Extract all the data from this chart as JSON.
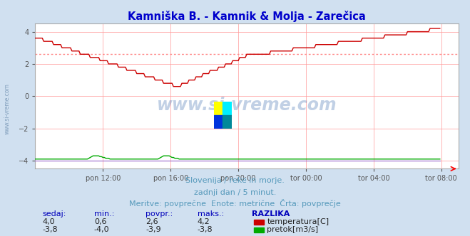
{
  "title": "Kamniška B. - Kamnik & Molja - Zarečica",
  "title_color": "#0000cc",
  "bg_color": "#d0e0f0",
  "plot_bg_color": "#ffffff",
  "grid_color": "#ff9999",
  "xlabel_ticks": [
    "pon 12:00",
    "pon 16:00",
    "pon 20:00",
    "tor 00:00",
    "tor 04:00",
    "tor 08:00"
  ],
  "xtick_positions": [
    48,
    96,
    144,
    192,
    240,
    288
  ],
  "ylim": [
    -4.5,
    4.5
  ],
  "xlim": [
    0,
    300
  ],
  "yticks": [
    -4,
    -2,
    0,
    2,
    4
  ],
  "avg_line_temp": 2.6,
  "avg_line_color": "#ff8888",
  "temp_color": "#cc0000",
  "flow_color": "#00aa00",
  "height_color": "#9966cc",
  "footer_line1": "Slovenija / reke in morje.",
  "footer_line2": "zadnji dan / 5 minut.",
  "footer_line3": "Meritve: povprečne  Enote: metrične  Črta: povprečje",
  "footer_color": "#5599bb",
  "table_headers": [
    "sedaj:",
    "min.:",
    "povpr.:",
    "maks.:",
    "RAZLIKA"
  ],
  "table_row1": [
    "4,0",
    "0,6",
    "2,6",
    "4,2"
  ],
  "table_row2": [
    "-3,8",
    "-4,0",
    "-3,9",
    "-3,8"
  ],
  "label_temp": "temperatura[C]",
  "label_flow": "pretok[m3/s]",
  "watermark": "www.si-vreme.com",
  "watermark_color": "#3366aa",
  "side_label": "www.si-vreme.com",
  "side_color": "#6688aa"
}
